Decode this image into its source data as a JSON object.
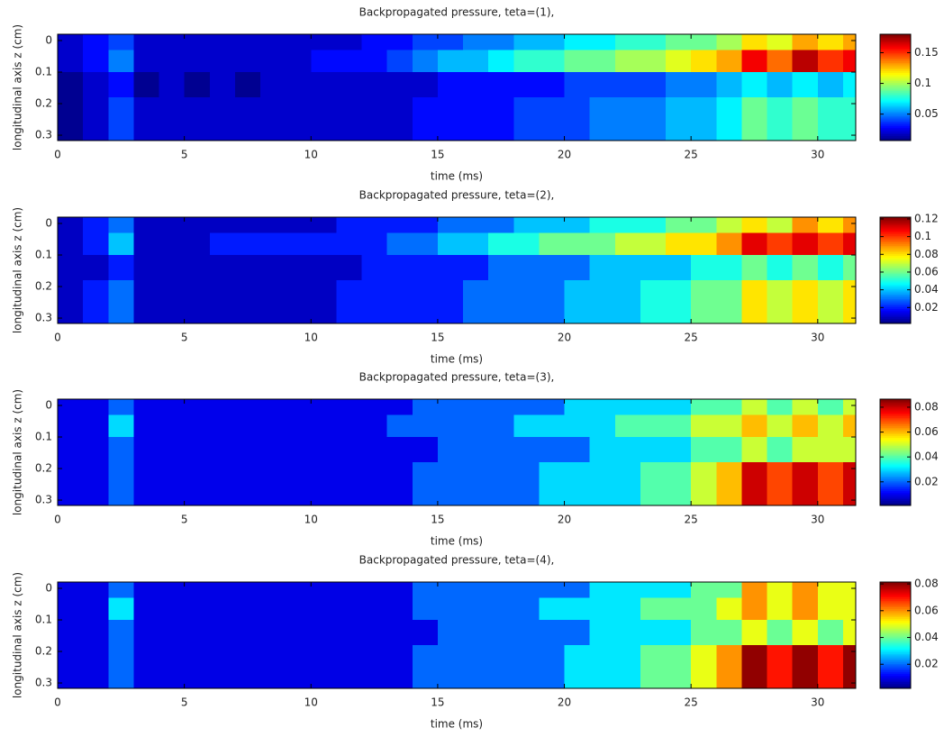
{
  "chart_data": [
    {
      "type": "heatmap",
      "title": "Backpropagated pressure, teta=(1),",
      "xlabel": "time (ms)",
      "ylabel": "longitudinal axis z (cm)",
      "x": [
        0,
        1,
        2,
        3,
        4,
        5,
        6,
        7,
        8,
        9,
        10,
        11,
        12,
        13,
        14,
        15,
        16,
        17,
        18,
        19,
        20,
        21,
        22,
        23,
        24,
        25,
        26,
        27,
        28,
        29,
        30,
        31
      ],
      "y": [
        -0.02,
        0.03,
        0.1,
        0.18
      ],
      "values": [
        [
          0.02,
          0.03,
          0.04,
          0.02,
          0.02,
          0.02,
          0.02,
          0.02,
          0.02,
          0.02,
          0.02,
          0.02,
          0.03,
          0.03,
          0.04,
          0.04,
          0.05,
          0.05,
          0.06,
          0.06,
          0.07,
          0.07,
          0.08,
          0.08,
          0.09,
          0.09,
          0.1,
          0.12,
          0.11,
          0.13,
          0.12,
          0.13
        ],
        [
          0.02,
          0.03,
          0.05,
          0.02,
          0.02,
          0.02,
          0.02,
          0.02,
          0.02,
          0.02,
          0.03,
          0.03,
          0.03,
          0.04,
          0.05,
          0.06,
          0.06,
          0.07,
          0.08,
          0.08,
          0.09,
          0.09,
          0.1,
          0.1,
          0.11,
          0.12,
          0.13,
          0.16,
          0.14,
          0.17,
          0.15,
          0.16
        ],
        [
          0.01,
          0.02,
          0.03,
          0.01,
          0.02,
          0.01,
          0.02,
          0.01,
          0.02,
          0.02,
          0.02,
          0.02,
          0.02,
          0.02,
          0.02,
          0.03,
          0.03,
          0.03,
          0.03,
          0.03,
          0.04,
          0.04,
          0.04,
          0.04,
          0.05,
          0.05,
          0.06,
          0.07,
          0.06,
          0.07,
          0.06,
          0.07
        ],
        [
          0.01,
          0.02,
          0.04,
          0.02,
          0.02,
          0.02,
          0.02,
          0.02,
          0.02,
          0.02,
          0.02,
          0.02,
          0.02,
          0.02,
          0.03,
          0.03,
          0.03,
          0.03,
          0.04,
          0.04,
          0.04,
          0.05,
          0.05,
          0.05,
          0.06,
          0.06,
          0.07,
          0.09,
          0.08,
          0.09,
          0.08,
          0.08
        ]
      ],
      "xlim": [
        0,
        31.5
      ],
      "ylim": [
        -0.02,
        0.317
      ],
      "y_reversed": true,
      "xticks": [
        0,
        5,
        10,
        15,
        20,
        25,
        30
      ],
      "yticks": [
        0,
        0.1,
        0.2,
        0.3
      ],
      "clim": [
        0.007,
        0.18
      ],
      "cticks": [
        0.05,
        0.1,
        0.15
      ],
      "colormap": "jet"
    },
    {
      "type": "heatmap",
      "title": "Backpropagated pressure, teta=(2),",
      "xlabel": "time (ms)",
      "ylabel": "longitudinal axis z (cm)",
      "x": [
        0,
        1,
        2,
        3,
        4,
        5,
        6,
        7,
        8,
        9,
        10,
        11,
        12,
        13,
        14,
        15,
        16,
        17,
        18,
        19,
        20,
        21,
        22,
        23,
        24,
        25,
        26,
        27,
        28,
        29,
        30,
        31
      ],
      "y": [
        -0.02,
        0.03,
        0.1,
        0.18
      ],
      "values": [
        [
          0.01,
          0.02,
          0.03,
          0.01,
          0.01,
          0.01,
          0.01,
          0.01,
          0.01,
          0.01,
          0.01,
          0.02,
          0.02,
          0.02,
          0.02,
          0.03,
          0.03,
          0.03,
          0.04,
          0.04,
          0.04,
          0.05,
          0.05,
          0.05,
          0.06,
          0.06,
          0.07,
          0.08,
          0.07,
          0.09,
          0.08,
          0.09
        ],
        [
          0.01,
          0.02,
          0.04,
          0.01,
          0.01,
          0.01,
          0.02,
          0.02,
          0.02,
          0.02,
          0.02,
          0.02,
          0.02,
          0.03,
          0.03,
          0.04,
          0.04,
          0.05,
          0.05,
          0.06,
          0.06,
          0.06,
          0.07,
          0.07,
          0.08,
          0.08,
          0.09,
          0.11,
          0.1,
          0.11,
          0.1,
          0.11
        ],
        [
          0.01,
          0.01,
          0.02,
          0.01,
          0.01,
          0.01,
          0.01,
          0.01,
          0.01,
          0.01,
          0.01,
          0.01,
          0.02,
          0.02,
          0.02,
          0.02,
          0.02,
          0.03,
          0.03,
          0.03,
          0.03,
          0.04,
          0.04,
          0.04,
          0.04,
          0.05,
          0.05,
          0.06,
          0.05,
          0.06,
          0.05,
          0.06
        ],
        [
          0.01,
          0.02,
          0.03,
          0.01,
          0.01,
          0.01,
          0.01,
          0.01,
          0.01,
          0.01,
          0.01,
          0.02,
          0.02,
          0.02,
          0.02,
          0.02,
          0.03,
          0.03,
          0.03,
          0.03,
          0.04,
          0.04,
          0.04,
          0.05,
          0.05,
          0.06,
          0.06,
          0.08,
          0.07,
          0.08,
          0.07,
          0.08
        ]
      ],
      "xlim": [
        0,
        31.5
      ],
      "ylim": [
        -0.02,
        0.317
      ],
      "y_reversed": true,
      "xticks": [
        0,
        5,
        10,
        15,
        20,
        25,
        30
      ],
      "yticks": [
        0,
        0.1,
        0.2,
        0.3
      ],
      "clim": [
        0.002,
        0.122
      ],
      "cticks": [
        0.02,
        0.04,
        0.06,
        0.08,
        0.1,
        0.12
      ],
      "colormap": "jet"
    },
    {
      "type": "heatmap",
      "title": "Backpropagated pressure, teta=(3),",
      "xlabel": "time (ms)",
      "ylabel": "longitudinal axis z (cm)",
      "x": [
        0,
        1,
        2,
        3,
        4,
        5,
        6,
        7,
        8,
        9,
        10,
        11,
        12,
        13,
        14,
        15,
        16,
        17,
        18,
        19,
        20,
        21,
        22,
        23,
        24,
        25,
        26,
        27,
        28,
        29,
        30,
        31
      ],
      "y": [
        -0.02,
        0.03,
        0.1,
        0.18
      ],
      "values": [
        [
          0.01,
          0.01,
          0.02,
          0.01,
          0.01,
          0.01,
          0.01,
          0.01,
          0.01,
          0.01,
          0.01,
          0.01,
          0.01,
          0.01,
          0.02,
          0.02,
          0.02,
          0.02,
          0.02,
          0.02,
          0.03,
          0.03,
          0.03,
          0.03,
          0.03,
          0.04,
          0.04,
          0.05,
          0.04,
          0.05,
          0.04,
          0.05
        ],
        [
          0.01,
          0.01,
          0.03,
          0.01,
          0.01,
          0.01,
          0.01,
          0.01,
          0.01,
          0.01,
          0.01,
          0.01,
          0.01,
          0.02,
          0.02,
          0.02,
          0.02,
          0.02,
          0.03,
          0.03,
          0.03,
          0.03,
          0.04,
          0.04,
          0.04,
          0.05,
          0.05,
          0.06,
          0.05,
          0.06,
          0.05,
          0.06
        ],
        [
          0.01,
          0.01,
          0.02,
          0.01,
          0.01,
          0.01,
          0.01,
          0.01,
          0.01,
          0.01,
          0.01,
          0.01,
          0.01,
          0.01,
          0.01,
          0.02,
          0.02,
          0.02,
          0.02,
          0.02,
          0.02,
          0.03,
          0.03,
          0.03,
          0.03,
          0.04,
          0.04,
          0.05,
          0.04,
          0.05,
          0.05,
          0.05
        ],
        [
          0.01,
          0.01,
          0.02,
          0.01,
          0.01,
          0.01,
          0.01,
          0.01,
          0.01,
          0.01,
          0.01,
          0.01,
          0.01,
          0.01,
          0.02,
          0.02,
          0.02,
          0.02,
          0.02,
          0.03,
          0.03,
          0.03,
          0.03,
          0.04,
          0.04,
          0.05,
          0.06,
          0.08,
          0.07,
          0.08,
          0.07,
          0.08
        ]
      ],
      "xlim": [
        0,
        31.5
      ],
      "ylim": [
        -0.02,
        0.317
      ],
      "y_reversed": true,
      "xticks": [
        0,
        5,
        10,
        15,
        20,
        25,
        30
      ],
      "yticks": [
        0,
        0.1,
        0.2,
        0.3
      ],
      "clim": [
        0.001,
        0.0865
      ],
      "cticks": [
        0.02,
        0.04,
        0.06,
        0.08
      ],
      "colormap": "jet"
    },
    {
      "type": "heatmap",
      "title": "Backpropagated pressure, teta=(4),",
      "xlabel": "time (ms)",
      "ylabel": "longitudinal axis z (cm)",
      "x": [
        0,
        1,
        2,
        3,
        4,
        5,
        6,
        7,
        8,
        9,
        10,
        11,
        12,
        13,
        14,
        15,
        16,
        17,
        18,
        19,
        20,
        21,
        22,
        23,
        24,
        25,
        26,
        27,
        28,
        29,
        30,
        31
      ],
      "y": [
        -0.02,
        0.03,
        0.1,
        0.18
      ],
      "values": [
        [
          0.01,
          0.01,
          0.02,
          0.01,
          0.01,
          0.01,
          0.01,
          0.01,
          0.01,
          0.01,
          0.01,
          0.01,
          0.01,
          0.01,
          0.02,
          0.02,
          0.02,
          0.02,
          0.02,
          0.02,
          0.02,
          0.03,
          0.03,
          0.03,
          0.03,
          0.04,
          0.04,
          0.06,
          0.05,
          0.06,
          0.05,
          0.05
        ],
        [
          0.01,
          0.01,
          0.03,
          0.01,
          0.01,
          0.01,
          0.01,
          0.01,
          0.01,
          0.01,
          0.01,
          0.01,
          0.01,
          0.01,
          0.02,
          0.02,
          0.02,
          0.02,
          0.02,
          0.03,
          0.03,
          0.03,
          0.03,
          0.04,
          0.04,
          0.04,
          0.05,
          0.06,
          0.05,
          0.06,
          0.05,
          0.05
        ],
        [
          0.01,
          0.01,
          0.02,
          0.01,
          0.01,
          0.01,
          0.01,
          0.01,
          0.01,
          0.01,
          0.01,
          0.01,
          0.01,
          0.01,
          0.01,
          0.02,
          0.02,
          0.02,
          0.02,
          0.02,
          0.02,
          0.03,
          0.03,
          0.03,
          0.03,
          0.04,
          0.04,
          0.05,
          0.04,
          0.05,
          0.04,
          0.05
        ],
        [
          0.01,
          0.01,
          0.02,
          0.01,
          0.01,
          0.01,
          0.01,
          0.01,
          0.01,
          0.01,
          0.01,
          0.01,
          0.01,
          0.01,
          0.02,
          0.02,
          0.02,
          0.02,
          0.02,
          0.02,
          0.03,
          0.03,
          0.03,
          0.04,
          0.04,
          0.05,
          0.06,
          0.08,
          0.07,
          0.08,
          0.07,
          0.08
        ]
      ],
      "xlim": [
        0,
        31.5
      ],
      "ylim": [
        -0.02,
        0.317
      ],
      "y_reversed": true,
      "xticks": [
        0,
        5,
        10,
        15,
        20,
        25,
        30
      ],
      "yticks": [
        0,
        0.1,
        0.2,
        0.3
      ],
      "clim": [
        0.002,
        0.0814
      ],
      "cticks": [
        0.02,
        0.04,
        0.06,
        0.08
      ],
      "colormap": "jet"
    }
  ]
}
